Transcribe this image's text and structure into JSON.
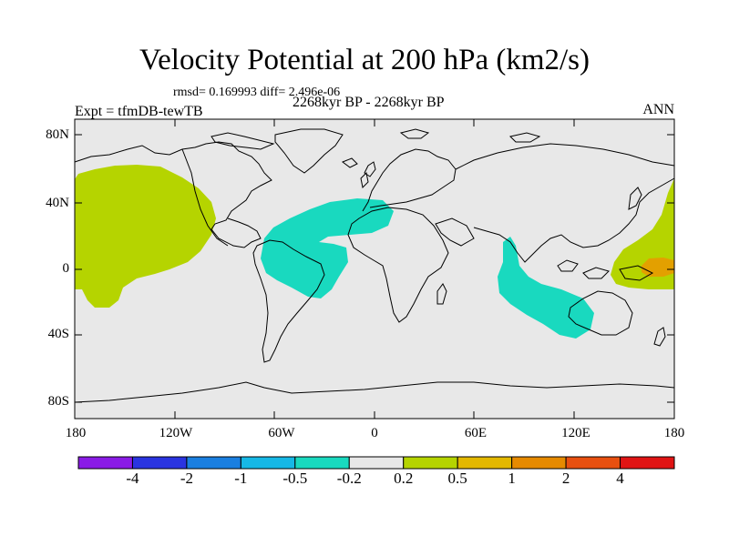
{
  "title": "Velocity Potential at 200 hPa (km2/s)",
  "stats_line": "rmsd= 0.169993 diff= 2.496e-06",
  "period_line": "2268kyr BP - 2268kyr BP",
  "experiment_line": "Expt = tfmDB-tewTB",
  "season": "ANN",
  "y_axis": {
    "labels": [
      "80N",
      "40N",
      "0",
      "40S",
      "80S"
    ]
  },
  "x_axis": {
    "labels": [
      "180",
      "120W",
      "60W",
      "0",
      "60E",
      "120E",
      "180"
    ]
  },
  "colorbar": {
    "colors": [
      "#8a1be6",
      "#2a34e0",
      "#1a7fe0",
      "#16b8e6",
      "#19d9bf",
      "#e8e8e8",
      "#b5d400",
      "#e3b800",
      "#e68a00",
      "#e85010",
      "#e01414"
    ],
    "labels": [
      "-4",
      "-2",
      "-1",
      "-0.5",
      "-0.2",
      "0.2",
      "0.5",
      "1",
      "2",
      "4"
    ]
  },
  "colors": {
    "ocean_background": "#e8e8e8",
    "positive_region": "#b5d400",
    "negative_region": "#19d9bf",
    "max_region": "#e3a000"
  }
}
